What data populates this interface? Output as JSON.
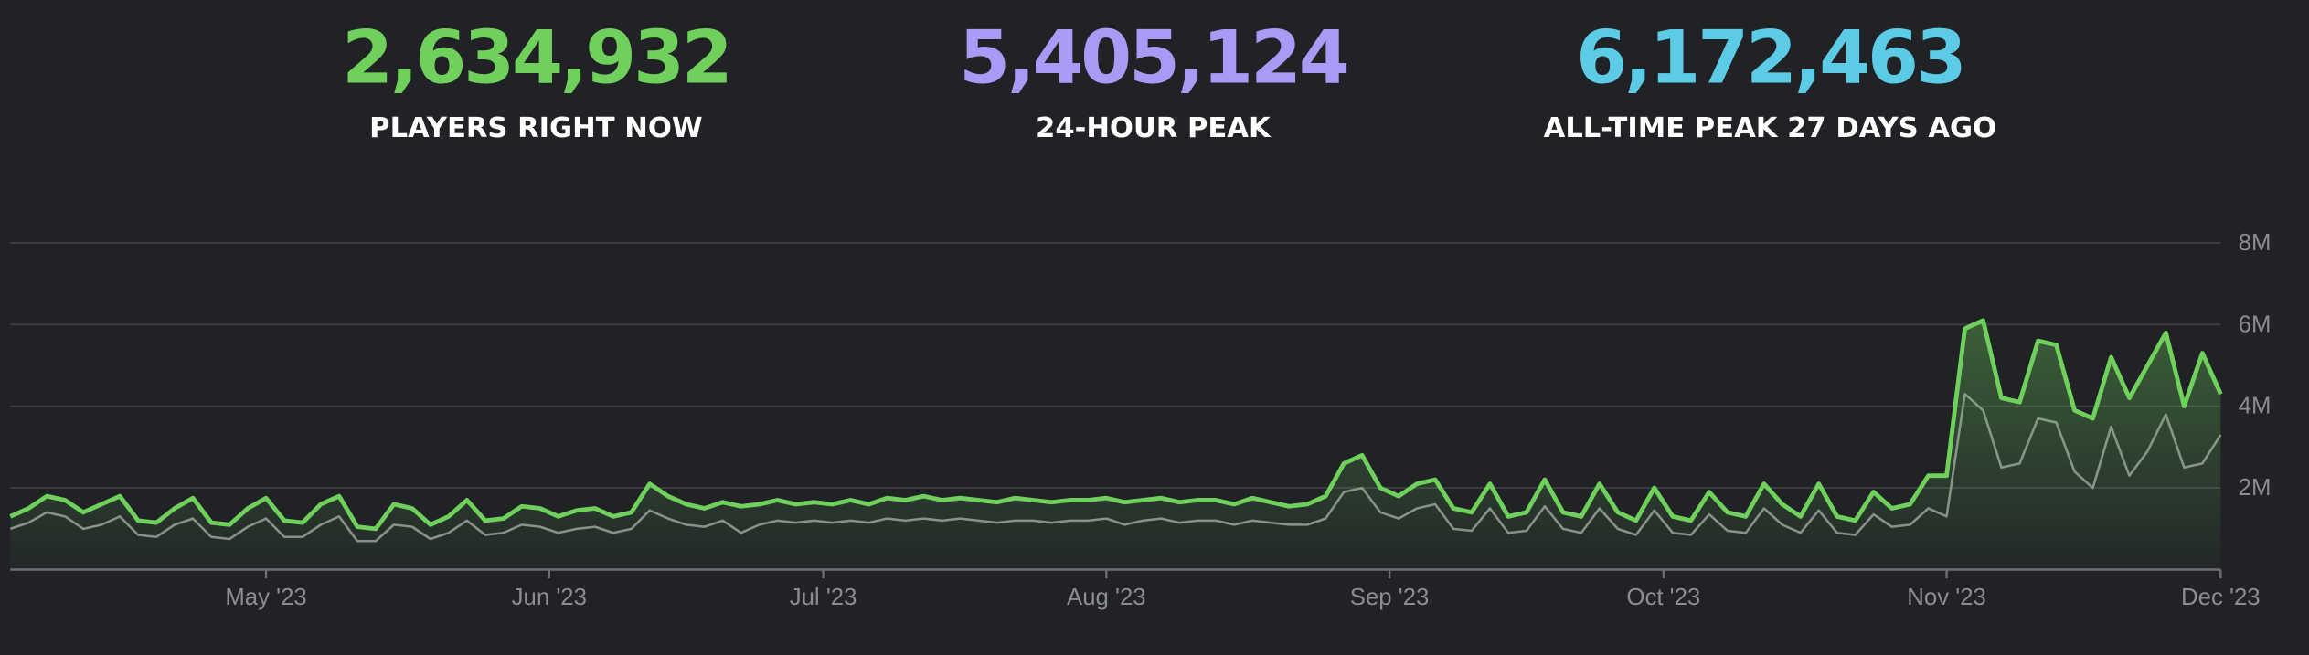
{
  "stats": [
    {
      "value": "2,634,932",
      "label": "PLAYERS RIGHT NOW",
      "color": "#6fd05c"
    },
    {
      "value": "5,405,124",
      "label": "24-HOUR PEAK",
      "color": "#a99bf5"
    },
    {
      "value": "6,172,463",
      "label": "ALL-TIME PEAK 27 DAYS AGO",
      "color": "#5ccbe6"
    }
  ],
  "chart_data": {
    "type": "line",
    "categories": [
      null,
      null,
      null,
      null,
      null,
      null,
      null,
      null,
      null,
      null,
      null,
      null,
      null,
      null,
      null,
      null,
      null,
      null,
      null,
      null,
      null,
      null,
      null,
      null,
      null,
      null,
      null,
      null,
      null,
      null,
      null,
      null,
      null,
      null,
      null,
      null,
      null,
      null,
      null,
      null,
      null,
      null,
      null,
      null,
      null,
      null,
      null,
      null,
      null,
      null,
      null,
      null,
      null,
      null,
      null,
      null,
      null,
      null,
      null,
      null,
      null,
      null,
      null,
      null,
      null,
      null,
      null,
      null,
      null,
      null,
      null,
      null,
      null,
      null,
      null,
      null,
      null,
      null,
      null,
      null,
      null,
      null,
      null,
      null,
      null,
      null,
      null,
      null,
      null,
      null,
      null,
      null,
      null,
      null,
      null,
      null,
      null,
      null,
      null,
      null,
      null,
      null,
      null,
      null,
      null,
      null,
      null,
      null,
      null,
      null,
      null,
      null,
      null,
      null,
      null,
      null,
      null,
      null,
      null,
      null,
      null,
      null
    ],
    "xlim": [
      0,
      121
    ],
    "xticks": [
      {
        "value": 14,
        "label": "May '23"
      },
      {
        "value": 29.5,
        "label": "Jun '23"
      },
      {
        "value": 44.5,
        "label": "Jul '23"
      },
      {
        "value": 60,
        "label": "Aug '23"
      },
      {
        "value": 75.5,
        "label": "Sep '23"
      },
      {
        "value": 90.5,
        "label": "Oct '23"
      },
      {
        "value": 106,
        "label": "Nov '23"
      },
      {
        "value": 121,
        "label": "Dec '23"
      }
    ],
    "ylim": [
      0,
      8000000
    ],
    "yticks": [
      {
        "value": 2000000,
        "label": "2M"
      },
      {
        "value": 4000000,
        "label": "4M"
      },
      {
        "value": 6000000,
        "label": "6M"
      },
      {
        "value": 8000000,
        "label": "8M"
      }
    ],
    "grid": true,
    "series": [
      {
        "color": "#6fd05c",
        "area": true,
        "values": [
          1300000,
          1500000,
          1800000,
          1700000,
          1400000,
          1600000,
          1800000,
          1200000,
          1150000,
          1500000,
          1750000,
          1150000,
          1100000,
          1500000,
          1750000,
          1200000,
          1150000,
          1600000,
          1800000,
          1050000,
          1000000,
          1600000,
          1500000,
          1100000,
          1300000,
          1700000,
          1200000,
          1250000,
          1550000,
          1500000,
          1300000,
          1450000,
          1500000,
          1300000,
          1400000,
          2100000,
          1800000,
          1600000,
          1500000,
          1650000,
          1550000,
          1600000,
          1700000,
          1600000,
          1650000,
          1600000,
          1700000,
          1600000,
          1750000,
          1700000,
          1800000,
          1700000,
          1750000,
          1700000,
          1650000,
          1750000,
          1700000,
          1650000,
          1700000,
          1700000,
          1750000,
          1650000,
          1700000,
          1750000,
          1650000,
          1700000,
          1700000,
          1600000,
          1750000,
          1650000,
          1550000,
          1600000,
          1800000,
          2600000,
          2800000,
          2000000,
          1800000,
          2100000,
          2200000,
          1500000,
          1400000,
          2100000,
          1300000,
          1400000,
          2200000,
          1400000,
          1300000,
          2100000,
          1400000,
          1200000,
          2000000,
          1300000,
          1200000,
          1900000,
          1400000,
          1300000,
          2100000,
          1600000,
          1300000,
          2100000,
          1300000,
          1200000,
          1900000,
          1500000,
          1600000,
          2300000,
          2300000,
          5900000,
          6100000,
          4200000,
          4100000,
          5600000,
          5500000,
          3900000,
          3700000,
          5200000,
          4200000,
          5000000,
          5800000,
          4000000,
          5300000,
          4300000
        ]
      },
      {
        "color": "#8a8b8e",
        "area": false,
        "values": [
          1000000,
          1150000,
          1400000,
          1300000,
          1000000,
          1100000,
          1300000,
          850000,
          800000,
          1100000,
          1250000,
          800000,
          750000,
          1050000,
          1250000,
          800000,
          800000,
          1100000,
          1300000,
          700000,
          700000,
          1100000,
          1050000,
          750000,
          900000,
          1200000,
          850000,
          900000,
          1100000,
          1050000,
          900000,
          1000000,
          1050000,
          900000,
          1000000,
          1450000,
          1250000,
          1100000,
          1050000,
          1200000,
          900000,
          1100000,
          1200000,
          1150000,
          1200000,
          1150000,
          1200000,
          1150000,
          1250000,
          1200000,
          1250000,
          1200000,
          1250000,
          1200000,
          1150000,
          1200000,
          1200000,
          1150000,
          1200000,
          1200000,
          1250000,
          1100000,
          1200000,
          1250000,
          1150000,
          1200000,
          1200000,
          1100000,
          1200000,
          1150000,
          1100000,
          1100000,
          1250000,
          1900000,
          2000000,
          1400000,
          1250000,
          1500000,
          1600000,
          1000000,
          950000,
          1500000,
          900000,
          950000,
          1550000,
          1000000,
          900000,
          1500000,
          1000000,
          850000,
          1450000,
          900000,
          850000,
          1350000,
          950000,
          900000,
          1500000,
          1100000,
          900000,
          1450000,
          900000,
          850000,
          1350000,
          1050000,
          1100000,
          1500000,
          1300000,
          4300000,
          3900000,
          2500000,
          2600000,
          3700000,
          3600000,
          2400000,
          2000000,
          3500000,
          2300000,
          2900000,
          3800000,
          2500000,
          2600000,
          3300000
        ]
      }
    ]
  }
}
